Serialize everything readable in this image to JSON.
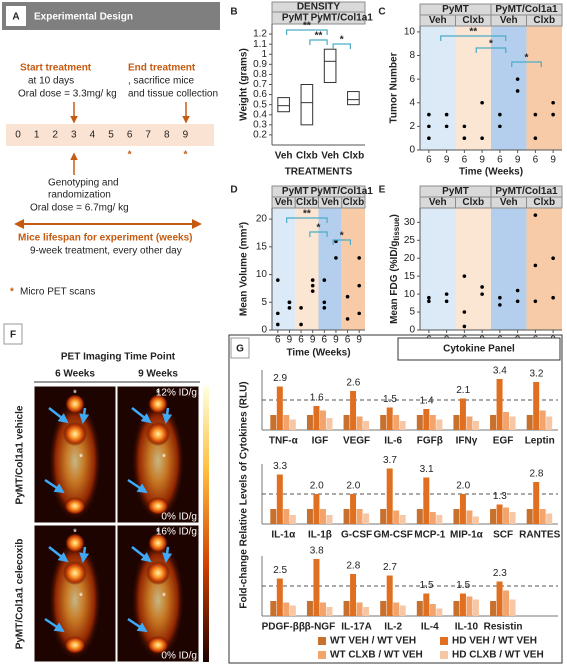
{
  "panel_a": {
    "label": "A",
    "title": "Experimental Design",
    "start_title": "Start treatment",
    "start_lines": [
      "at 10 days",
      "Oral dose = 3.3mg/ kg"
    ],
    "end_title": "End treatment",
    "end_lines": [
      ", sacrifice mice",
      "and tissue collection"
    ],
    "timeline": [
      0,
      1,
      2,
      3,
      4,
      5,
      6,
      7,
      8,
      9
    ],
    "scan_mark": "*",
    "scans": [
      6,
      9
    ],
    "geno_lines": [
      "Genotyping and",
      "randomization",
      "Oral dose = 6.7mg/ kg"
    ],
    "lifespan": "Mice lifespan for experiment (weeks)",
    "treatment": "9-week treatment, every other day",
    "legend_text": "Micro PET scans"
  },
  "panel_f": {
    "label": "F",
    "title": "PET Imaging Time Point",
    "columns": [
      "6 Weeks",
      "9 Weeks"
    ],
    "rows": [
      "PyMT/Col1a1 vehicle",
      "PyMT/Col1a1 celecoxib"
    ],
    "scale_labels": [
      [
        "12% ID/g",
        "0% ID/g"
      ],
      [
        "16% ID/g",
        "0% ID/g"
      ]
    ],
    "image_mark": "*"
  },
  "chart_data": [
    {
      "type": "box",
      "label": "B",
      "title": "DENSITY",
      "groups": [
        "PyMT",
        "PyMT/Col1a1"
      ],
      "categories": [
        "Veh",
        "Clxb",
        "Veh",
        "Clxb"
      ],
      "x_label": "TREATMENTS",
      "y_label": "Weight (grams)",
      "ylim": [
        0.1,
        1.3
      ],
      "yticks": [
        0.2,
        0.3,
        0.4,
        0.5,
        0.6,
        0.7,
        0.8,
        0.9,
        1,
        1.1,
        1.2
      ],
      "boxes": [
        {
          "q1": 0.43,
          "median": 0.49,
          "q3": 0.57
        },
        {
          "q1": 0.3,
          "median": 0.52,
          "q3": 0.7
        },
        {
          "q1": 0.72,
          "median": 0.93,
          "q3": 1.05
        },
        {
          "q1": 0.5,
          "median": 0.55,
          "q3": 0.63
        }
      ],
      "color": "#333333",
      "annotations": [
        "**",
        "**",
        "*"
      ]
    },
    {
      "type": "dot",
      "label": "C",
      "groups": [
        "PyMT",
        "PyMT/Col1a1"
      ],
      "x_label": "Time (Weeks)",
      "y_label": "Tumor Number",
      "xlim": [
        4.5,
        10.5
      ],
      "xticks": [
        6,
        9
      ],
      "ylim": [
        0,
        10.5
      ],
      "yticks": [
        0,
        2,
        4,
        6,
        8,
        10
      ],
      "point_color": "#000000",
      "series": [
        {
          "name": "Veh",
          "color": "#dce9f6",
          "x": [
            6,
            6,
            6,
            9,
            9
          ],
          "values": [
            1,
            2,
            3,
            2,
            3
          ]
        },
        {
          "name": "Clxb",
          "color": "#fbe5d3",
          "x": [
            6,
            6,
            9,
            9
          ],
          "values": [
            1,
            2,
            1,
            4
          ]
        },
        {
          "name": "Veh",
          "color": "#b4cfee",
          "x": [
            6,
            6,
            9,
            9
          ],
          "values": [
            2,
            3,
            5,
            6
          ]
        },
        {
          "name": "Clxb",
          "color": "#f7cba8",
          "x": [
            6,
            6,
            9,
            9
          ],
          "values": [
            1,
            3,
            3,
            4
          ]
        }
      ],
      "annotations": [
        "**",
        "*",
        "*"
      ]
    },
    {
      "type": "dot",
      "label": "D",
      "groups": [
        "PyMT",
        "PyMT/Col1a1"
      ],
      "x_label": "Time (Weeks)",
      "y_label": "Mean Volume (mm³)",
      "xlim": [
        4.5,
        10.5
      ],
      "xticks": [
        6,
        9
      ],
      "ylim": [
        0,
        22
      ],
      "yticks": [
        0,
        5,
        10,
        15,
        20
      ],
      "point_color": "#000000",
      "series": [
        {
          "name": "Veh",
          "color": "#dce9f6",
          "x": [
            6,
            6,
            6,
            9,
            9,
            9
          ],
          "values": [
            9,
            3,
            1,
            5,
            4,
            5
          ]
        },
        {
          "name": "Clxb",
          "color": "#fbe5d3",
          "x": [
            6,
            6,
            9,
            9,
            9
          ],
          "values": [
            4,
            1,
            7,
            8,
            9
          ]
        },
        {
          "name": "Veh",
          "color": "#b4cfee",
          "x": [
            6,
            6,
            6,
            9,
            9
          ],
          "values": [
            9,
            5,
            4,
            13,
            16
          ]
        },
        {
          "name": "Clxb",
          "color": "#f7cba8",
          "x": [
            6,
            6,
            9,
            9,
            9
          ],
          "values": [
            6,
            2,
            13,
            8,
            3
          ]
        }
      ],
      "annotations": [
        "**",
        "*",
        "*"
      ]
    },
    {
      "type": "dot",
      "label": "E",
      "groups": [
        "PyMT",
        "PyMT/Col1a1"
      ],
      "x_label": "Time (Weeks)",
      "y_label": [
        "Mean FDG (%ID/g",
        "tissue",
        ")"
      ],
      "xlim": [
        4.5,
        10.5
      ],
      "xticks": [
        6,
        9
      ],
      "ylim": [
        0,
        34
      ],
      "yticks": [
        0,
        5,
        10,
        15,
        20,
        25,
        30
      ],
      "point_color": "#000000",
      "series": [
        {
          "name": "Veh",
          "color": "#dce9f6",
          "x": [
            6,
            6,
            9,
            9
          ],
          "values": [
            9,
            8,
            10,
            8
          ]
        },
        {
          "name": "Clxb",
          "color": "#fbe5d3",
          "x": [
            6,
            6,
            6,
            9,
            9
          ],
          "values": [
            15,
            5,
            1,
            12,
            10
          ]
        },
        {
          "name": "Veh",
          "color": "#b4cfee",
          "x": [
            6,
            6,
            9,
            9
          ],
          "values": [
            9,
            7,
            11,
            8
          ]
        },
        {
          "name": "Clxb",
          "color": "#f7cba8",
          "x": [
            6,
            6,
            6,
            9,
            9
          ],
          "values": [
            32,
            18,
            8,
            20,
            9
          ]
        }
      ],
      "annotations": []
    },
    {
      "type": "grouped-bar",
      "label": "G",
      "title": "Cytokine Panel",
      "y_label": "Fold-change Relative Levels of Cytokines (RLU)",
      "categories": [
        "TNF-α",
        "IGF",
        "VEGF",
        "IL-6",
        "FGFβ",
        "IFNγ",
        "EGF",
        "Leptin",
        "IL-1α",
        "IL-1β",
        "G-CSF",
        "GM-CSF",
        "MCP-1",
        "MIP-1α",
        "SCF",
        "RANTES",
        "PDGF-ββ",
        "β-NGF",
        "IL-17A",
        "IL-2",
        "IL-4",
        "IL-10",
        "Resistin"
      ],
      "ylim": [
        0,
        4
      ],
      "reference_line": 2,
      "series": [
        {
          "name": "WT VEH / WT VEH",
          "color": "#c8702e",
          "values": [
            1,
            1,
            1,
            1,
            1,
            1,
            1,
            1,
            1,
            1,
            1,
            1,
            1,
            1,
            1,
            1,
            1,
            1,
            1,
            1,
            1,
            1,
            1
          ]
        },
        {
          "name": "HD VEH / WT VEH",
          "color": "#e07020",
          "values": [
            2.9,
            1.6,
            2.6,
            1.5,
            1.4,
            2.1,
            3.4,
            3.2,
            3.3,
            2.0,
            2.0,
            3.7,
            3.1,
            2.0,
            1.3,
            2.8,
            2.5,
            3.8,
            2.8,
            2.7,
            1.5,
            1.5,
            2.3
          ],
          "value_labels": [
            "2.9",
            "1.6",
            "2.6",
            "1.5",
            "1.4",
            "2.1",
            "3.4",
            "3.2",
            "3.3",
            "2.0",
            "2.0",
            "3.7",
            "3.1",
            "2.0",
            "1.3",
            "2.8",
            "2.5",
            "3.8",
            "2.8",
            "2.7",
            "1.5",
            "1.5",
            "2.3"
          ]
        },
        {
          "name": "WT CLXB / WT VEH",
          "color": "#f2a46c",
          "values": [
            1.0,
            1.3,
            0.9,
            1.0,
            1.0,
            0.9,
            1.2,
            1.3,
            1.0,
            1.0,
            1.0,
            0.9,
            0.8,
            0.9,
            1.1,
            1.0,
            0.9,
            0.9,
            0.9,
            0.9,
            0.8,
            1.3,
            1.7
          ]
        },
        {
          "name": "HD CLXB / WT VEH",
          "color": "#f7c6a5",
          "values": [
            0.7,
            0.8,
            0.6,
            0.6,
            0.7,
            0.6,
            0.9,
            0.9,
            0.6,
            0.6,
            0.7,
            0.6,
            0.6,
            0.5,
            0.8,
            0.7,
            0.7,
            0.6,
            0.6,
            0.7,
            0.5,
            1.1,
            1.1
          ]
        }
      ]
    }
  ]
}
